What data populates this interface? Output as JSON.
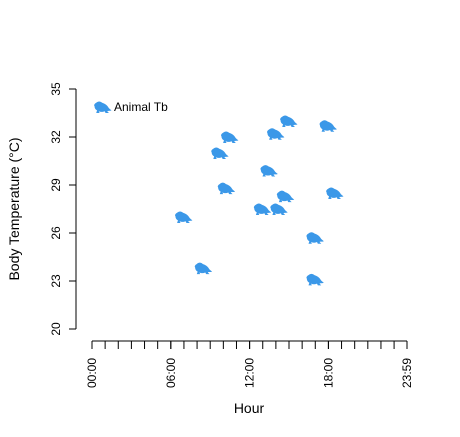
{
  "chart_data": {
    "type": "scatter",
    "xlabel": "Hour",
    "ylabel": "Body Temperature (°C)",
    "x_ticks": [
      "00:00",
      "06:00",
      "12:00",
      "18:00",
      "23:59"
    ],
    "y_ticks": [
      20,
      23,
      26,
      29,
      32,
      35
    ],
    "xlim": [
      "00:00",
      "23:59"
    ],
    "ylim": [
      20,
      35
    ],
    "legend": {
      "label": "Animal Tb",
      "placement": "top-left"
    },
    "marker": {
      "icon": "frog-icon",
      "color": "#3b98e8"
    },
    "series": [
      {
        "name": "Animal Tb",
        "points": [
          {
            "x": "07:00",
            "y": 27.0
          },
          {
            "x": "08:30",
            "y": 23.8
          },
          {
            "x": "09:45",
            "y": 31.0
          },
          {
            "x": "10:15",
            "y": 28.8
          },
          {
            "x": "10:30",
            "y": 32.0
          },
          {
            "x": "13:00",
            "y": 27.5
          },
          {
            "x": "13:30",
            "y": 29.9
          },
          {
            "x": "14:00",
            "y": 32.2
          },
          {
            "x": "14:15",
            "y": 27.5
          },
          {
            "x": "14:45",
            "y": 28.3
          },
          {
            "x": "15:00",
            "y": 33.0
          },
          {
            "x": "17:00",
            "y": 25.7
          },
          {
            "x": "17:00",
            "y": 23.1
          },
          {
            "x": "18:00",
            "y": 32.7
          },
          {
            "x": "18:30",
            "y": 28.5
          }
        ]
      }
    ]
  }
}
